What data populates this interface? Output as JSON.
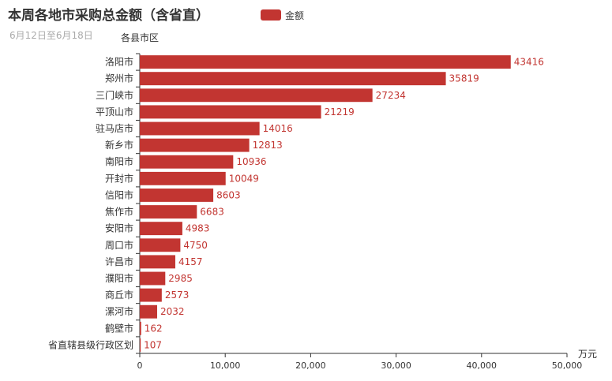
{
  "chart_data": {
    "type": "bar",
    "orientation": "horizontal",
    "title": "本周各地市采购总金额（含省直）",
    "subtitle": "6月12日至6月18日",
    "ylabel": "各县市区",
    "xlabel": "万元",
    "legend": {
      "position": "top",
      "entries": [
        "金额"
      ]
    },
    "color": "#c23531",
    "xlim": [
      0,
      50000
    ],
    "xticks": [
      0,
      10000,
      20000,
      30000,
      40000,
      50000
    ],
    "xtick_labels": [
      "0",
      "10,000",
      "20,000",
      "30,000",
      "40,000",
      "50,000"
    ],
    "grid": false,
    "categories": [
      "洛阳市",
      "郑州市",
      "三门峡市",
      "平顶山市",
      "驻马店市",
      "新乡市",
      "南阳市",
      "开封市",
      "信阳市",
      "焦作市",
      "安阳市",
      "周口市",
      "许昌市",
      "濮阳市",
      "商丘市",
      "漯河市",
      "鹤壁市",
      "省直辖县级行政区划"
    ],
    "series": [
      {
        "name": "金额",
        "values": [
          43416,
          35819,
          27234,
          21219,
          14016,
          12813,
          10936,
          10049,
          8603,
          6683,
          4983,
          4750,
          4157,
          2985,
          2573,
          2032,
          162,
          107
        ]
      }
    ]
  }
}
